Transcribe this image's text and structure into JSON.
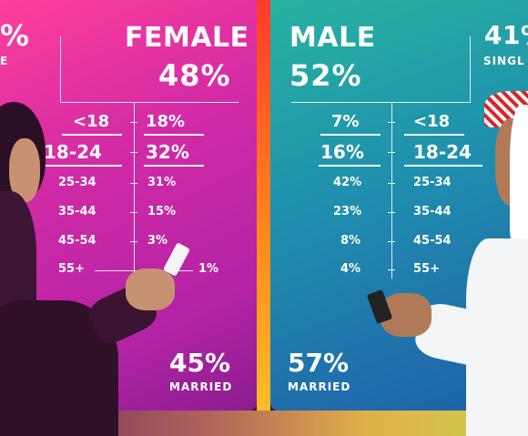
{
  "female": {
    "title": "FEMALE",
    "share": "48%",
    "single_pct_partial": "%",
    "single_label_partial": "E",
    "married_pct": "45%",
    "married_label": "MARRIED",
    "ages": [
      {
        "label": "<18",
        "value": "18%"
      },
      {
        "label": "18-24",
        "value": "32%"
      },
      {
        "label": "25-34",
        "value": "31%"
      },
      {
        "label": "35-44",
        "value": "15%"
      },
      {
        "label": "45-54",
        "value": "3%"
      },
      {
        "label": "55+",
        "value": "1%"
      }
    ]
  },
  "male": {
    "title": "MALE",
    "share": "52%",
    "single_pct": "41%",
    "single_label": "SINGL",
    "married_pct": "57%",
    "married_label": "MARRIED",
    "ages": [
      {
        "label": "<18",
        "value": "7%"
      },
      {
        "label": "18-24",
        "value": "16%"
      },
      {
        "label": "25-34",
        "value": "42%"
      },
      {
        "label": "35-44",
        "value": "23%"
      },
      {
        "label": "45-54",
        "value": "8%"
      },
      {
        "label": "55+",
        "value": "4%"
      }
    ]
  },
  "colors": {
    "female_panel": "#c82aa6",
    "male_panel": "#1f8fae",
    "divider_stripe": "#ff7a1a",
    "text": "#ffffff"
  },
  "icons": [
    "woman-with-phone",
    "man-with-phone"
  ]
}
